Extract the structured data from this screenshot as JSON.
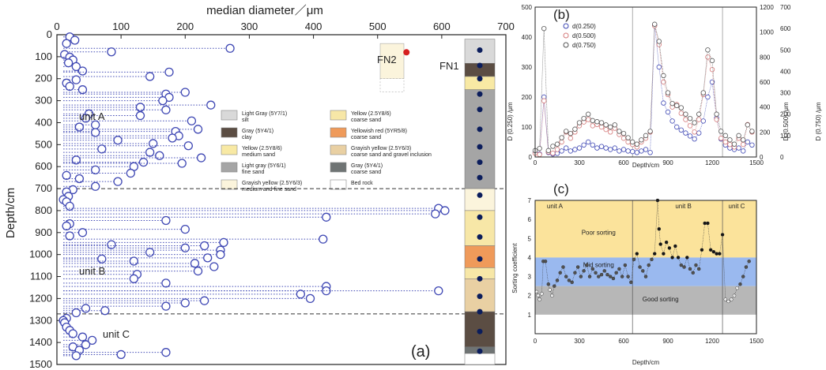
{
  "colors": {
    "blue_circle": "#3f48b4",
    "pink_circle": "#d57a7a",
    "gray_circle": "#555555",
    "light_gray": "#d9d9d9",
    "dark_brown": "#5b4d43",
    "yellow": "#f8e9a4",
    "mid_gray": "#a5a5a5",
    "light_yellow": "#fbf4dc",
    "yellow_sand": "#f7e7a7",
    "orange": "#ef9a5a",
    "gravel": "#e9d0a3",
    "dark_gray": "#6f7474",
    "poor_zone": "#fbe39b",
    "mid_zone": "#9ab9ef",
    "good_zone": "#b7b7b7"
  },
  "chart_data": [
    {
      "id": "a",
      "type": "scatter",
      "panel_label": "(a)",
      "xlabel": "median diameter／μm",
      "ylabel": "Depth/cm",
      "xlim": [
        0,
        700
      ],
      "ylim": [
        0,
        1500
      ],
      "x_ticks": [
        "0",
        "100",
        "200",
        "300",
        "400",
        "500",
        "600",
        "700"
      ],
      "y_ticks": [
        "0",
        "100",
        "200",
        "300",
        "400",
        "500",
        "600",
        "700",
        "800",
        "900",
        "1000",
        "1100",
        "1200",
        "1300",
        "1400",
        "1500"
      ],
      "unit_labels": [
        "unit A",
        "unit B",
        "unit C"
      ],
      "boundaries": [
        700,
        1270
      ],
      "columns": [
        "FN2",
        "FN1"
      ],
      "legend": [
        {
          "line1": "Light Gray (5Y7/1)",
          "line2": "silt",
          "color_key": "light_gray"
        },
        {
          "line1": "Gray (5Y4/1)",
          "line2": "clay",
          "color_key": "dark_brown"
        },
        {
          "line1": "Yellow (2.5Y8/6)",
          "line2": "medium sand",
          "color_key": "yellow"
        },
        {
          "line1": "Light gray (5Y6/1)",
          "line2": "fine sand",
          "color_key": "mid_gray"
        },
        {
          "line1": "Grayish yellow (2.5Y6/3)",
          "line2": "medium and fine sand",
          "color_key": "light_yellow"
        },
        {
          "line1": "Yellow (2.5Y8/6)",
          "line2": "coarse sand",
          "color_key": "yellow_sand"
        },
        {
          "line1": "Yellowish red (5YR5/8)",
          "line2": "coarse sand",
          "color_key": "orange"
        },
        {
          "line1": "Grayish yellow (2.5Y6/3)",
          "line2": "coarse sand and gravel inclusion",
          "color_key": "gravel"
        },
        {
          "line1": "Gray (5Y4/1)",
          "line2": "coarse sand",
          "color_key": "dark_gray"
        },
        {
          "line1": "Bed rock",
          "line2": "",
          "color_key": "bedrock"
        }
      ],
      "points": [
        [
          20,
          10
        ],
        [
          28,
          25
        ],
        [
          15,
          40
        ],
        [
          270,
          62
        ],
        [
          85,
          78
        ],
        [
          12,
          90
        ],
        [
          20,
          102
        ],
        [
          25,
          115
        ],
        [
          18,
          128
        ],
        [
          30,
          145
        ],
        [
          40,
          165
        ],
        [
          175,
          170
        ],
        [
          145,
          190
        ],
        [
          30,
          205
        ],
        [
          15,
          220
        ],
        [
          20,
          235
        ],
        [
          40,
          250
        ],
        [
          200,
          262
        ],
        [
          170,
          270
        ],
        [
          175,
          285
        ],
        [
          165,
          300
        ],
        [
          240,
          320
        ],
        [
          130,
          330
        ],
        [
          170,
          342
        ],
        [
          50,
          360
        ],
        [
          45,
          380
        ],
        [
          130,
          368
        ],
        [
          210,
          392
        ],
        [
          60,
          410
        ],
        [
          35,
          420
        ],
        [
          220,
          430
        ],
        [
          185,
          440
        ],
        [
          60,
          445
        ],
        [
          190,
          460
        ],
        [
          180,
          470
        ],
        [
          95,
          480
        ],
        [
          150,
          495
        ],
        [
          205,
          505
        ],
        [
          70,
          520
        ],
        [
          145,
          535
        ],
        [
          160,
          550
        ],
        [
          225,
          560
        ],
        [
          30,
          570
        ],
        [
          135,
          580
        ],
        [
          195,
          585
        ],
        [
          120,
          600
        ],
        [
          60,
          615
        ],
        [
          115,
          630
        ],
        [
          15,
          640
        ],
        [
          35,
          655
        ],
        [
          95,
          668
        ],
        [
          60,
          690
        ],
        [
          25,
          705
        ],
        [
          15,
          715
        ],
        [
          18,
          735
        ],
        [
          10,
          750
        ],
        [
          15,
          760
        ],
        [
          20,
          780
        ],
        [
          595,
          790
        ],
        [
          605,
          800
        ],
        [
          590,
          815
        ],
        [
          420,
          830
        ],
        [
          170,
          845
        ],
        [
          20,
          860
        ],
        [
          15,
          870
        ],
        [
          200,
          885
        ],
        [
          40,
          900
        ],
        [
          20,
          915
        ],
        [
          415,
          930
        ],
        [
          260,
          945
        ],
        [
          85,
          955
        ],
        [
          230,
          960
        ],
        [
          200,
          970
        ],
        [
          255,
          980
        ],
        [
          145,
          990
        ],
        [
          255,
          1000
        ],
        [
          235,
          1015
        ],
        [
          70,
          1020
        ],
        [
          120,
          1030
        ],
        [
          215,
          1040
        ],
        [
          245,
          1055
        ],
        [
          220,
          1075
        ],
        [
          125,
          1090
        ],
        [
          120,
          1110
        ],
        [
          170,
          1130
        ],
        [
          420,
          1145
        ],
        [
          420,
          1165
        ],
        [
          380,
          1180
        ],
        [
          595,
          1165
        ],
        [
          395,
          1200
        ],
        [
          230,
          1210
        ],
        [
          200,
          1220
        ],
        [
          170,
          1235
        ],
        [
          45,
          1245
        ],
        [
          75,
          1255
        ],
        [
          30,
          1265
        ],
        [
          15,
          1290
        ],
        [
          10,
          1300
        ],
        [
          12,
          1310
        ],
        [
          15,
          1330
        ],
        [
          20,
          1345
        ],
        [
          25,
          1360
        ],
        [
          40,
          1375
        ],
        [
          55,
          1390
        ],
        [
          45,
          1410
        ],
        [
          25,
          1420
        ],
        [
          35,
          1435
        ],
        [
          170,
          1445
        ],
        [
          100,
          1455
        ],
        [
          30,
          1460
        ]
      ]
    },
    {
      "id": "b",
      "type": "line",
      "panel_label": "(b)",
      "xlabel": "Depth/cm",
      "ylabel_left": "D (0.250) /μm",
      "ylabel_right1": "D (0.500) /μm",
      "ylabel_right2": "D (0.750) /μm",
      "xlim": [
        0,
        1500
      ],
      "ylim_left": [
        0,
        500
      ],
      "ylim_right1": [
        0,
        1200
      ],
      "ylim_right2": [
        0,
        700
      ],
      "x_ticks": [
        "0",
        "300",
        "600",
        "900",
        "1200",
        "1500"
      ],
      "y_ticks_left": [
        "0",
        "100",
        "200",
        "300",
        "400",
        "500"
      ],
      "y_ticks_right1": [
        "0",
        "200",
        "400",
        "600",
        "800",
        "1000",
        "1200"
      ],
      "y_ticks_right2": [
        "0",
        "100",
        "200",
        "300",
        "400",
        "500",
        "600",
        "700"
      ],
      "series": [
        {
          "name": "d(0.250)",
          "color_key": "blue_circle"
        },
        {
          "name": "d(0.500)",
          "color_key": "pink_circle"
        },
        {
          "name": "d(0.750)",
          "color_key": "gray_circle"
        }
      ],
      "x": [
        0,
        30,
        60,
        90,
        120,
        150,
        180,
        210,
        240,
        270,
        300,
        330,
        360,
        390,
        420,
        450,
        480,
        510,
        540,
        570,
        600,
        630,
        660,
        690,
        720,
        750,
        780,
        810,
        840,
        870,
        900,
        930,
        960,
        990,
        1020,
        1050,
        1080,
        1110,
        1140,
        1170,
        1200,
        1230,
        1260,
        1290,
        1320,
        1350,
        1380,
        1410,
        1440,
        1470
      ],
      "values": [
        [
          15,
          10,
          200,
          15,
          10,
          12,
          20,
          30,
          20,
          25,
          30,
          40,
          50,
          40,
          30,
          35,
          30,
          25,
          30,
          20,
          25,
          20,
          18,
          15,
          20,
          25,
          15,
          440,
          300,
          180,
          150,
          120,
          100,
          90,
          80,
          70,
          60,
          80,
          120,
          200,
          250,
          130,
          60,
          40,
          30,
          25,
          30,
          20,
          50,
          40
        ],
        [
          30,
          20,
          450,
          40,
          30,
          60,
          120,
          200,
          150,
          200,
          250,
          280,
          300,
          250,
          260,
          240,
          220,
          200,
          230,
          180,
          150,
          120,
          100,
          80,
          120,
          150,
          200,
          1050,
          900,
          600,
          500,
          400,
          420,
          350,
          300,
          250,
          200,
          300,
          500,
          800,
          700,
          300,
          150,
          120,
          100,
          80,
          150,
          100,
          260,
          200
        ],
        [
          30,
          40,
          600,
          30,
          50,
          60,
          90,
          120,
          110,
          130,
          160,
          180,
          200,
          170,
          165,
          160,
          150,
          140,
          150,
          120,
          110,
          90,
          70,
          60,
          80,
          100,
          120,
          620,
          540,
          380,
          300,
          250,
          240,
          230,
          200,
          180,
          160,
          200,
          300,
          500,
          450,
          200,
          120,
          100,
          80,
          60,
          100,
          80,
          150,
          120
        ]
      ]
    },
    {
      "id": "c",
      "type": "scatter",
      "panel_label": "(c)",
      "xlabel": "Depth/cm",
      "ylabel": "Sorting coefficient",
      "xlim": [
        0,
        1500
      ],
      "ylim": [
        0,
        7
      ],
      "x_ticks": [
        "0",
        "300",
        "600",
        "900",
        "1200",
        "1500"
      ],
      "y_ticks": [
        "1",
        "2",
        "3",
        "4",
        "5",
        "6",
        "7"
      ],
      "zones": [
        "Poor sorting",
        "Mid sorting",
        "Good sorting"
      ],
      "unit_labels": [
        "unit A",
        "unit B",
        "unit C"
      ],
      "points": [
        [
          10,
          2.2
        ],
        [
          20,
          2.0
        ],
        [
          30,
          1.8
        ],
        [
          45,
          2.1
        ],
        [
          55,
          3.8
        ],
        [
          70,
          3.8
        ],
        [
          90,
          2.6
        ],
        [
          100,
          2.3
        ],
        [
          115,
          2.0
        ],
        [
          130,
          2.5
        ],
        [
          150,
          2.8
        ],
        [
          170,
          3.2
        ],
        [
          190,
          3.5
        ],
        [
          210,
          3.0
        ],
        [
          230,
          2.8
        ],
        [
          250,
          2.7
        ],
        [
          270,
          3.2
        ],
        [
          290,
          3.5
        ],
        [
          310,
          3.0
        ],
        [
          330,
          3.3
        ],
        [
          350,
          3.6
        ],
        [
          370,
          3.0
        ],
        [
          390,
          3.4
        ],
        [
          410,
          3.2
        ],
        [
          430,
          3.0
        ],
        [
          450,
          3.1
        ],
        [
          470,
          3.3
        ],
        [
          490,
          3.1
        ],
        [
          510,
          3.0
        ],
        [
          530,
          2.9
        ],
        [
          550,
          3.2
        ],
        [
          570,
          3.4
        ],
        [
          590,
          3.0
        ],
        [
          610,
          3.6
        ],
        [
          630,
          3.0
        ],
        [
          650,
          2.7
        ],
        [
          670,
          3.9
        ],
        [
          690,
          4.2
        ],
        [
          710,
          3.5
        ],
        [
          730,
          3.3
        ],
        [
          750,
          3.0
        ],
        [
          770,
          3.6
        ],
        [
          790,
          3.9
        ],
        [
          810,
          4.2
        ],
        [
          830,
          7.0
        ],
        [
          840,
          5.5
        ],
        [
          850,
          4.7
        ],
        [
          870,
          4.2
        ],
        [
          890,
          4.8
        ],
        [
          910,
          4.5
        ],
        [
          930,
          4.0
        ],
        [
          950,
          4.6
        ],
        [
          970,
          4.0
        ],
        [
          990,
          3.6
        ],
        [
          1010,
          3.5
        ],
        [
          1030,
          4.0
        ],
        [
          1050,
          3.4
        ],
        [
          1070,
          3.2
        ],
        [
          1090,
          3.6
        ],
        [
          1110,
          3.4
        ],
        [
          1130,
          4.4
        ],
        [
          1150,
          5.8
        ],
        [
          1170,
          5.8
        ],
        [
          1190,
          4.4
        ],
        [
          1210,
          4.3
        ],
        [
          1230,
          4.2
        ],
        [
          1250,
          4.2
        ],
        [
          1270,
          5.2
        ],
        [
          1290,
          1.8
        ],
        [
          1310,
          1.7
        ],
        [
          1330,
          1.8
        ],
        [
          1350,
          2.0
        ],
        [
          1370,
          2.4
        ],
        [
          1390,
          2.6
        ],
        [
          1410,
          3.0
        ],
        [
          1430,
          3.5
        ],
        [
          1450,
          3.8
        ]
      ]
    }
  ]
}
